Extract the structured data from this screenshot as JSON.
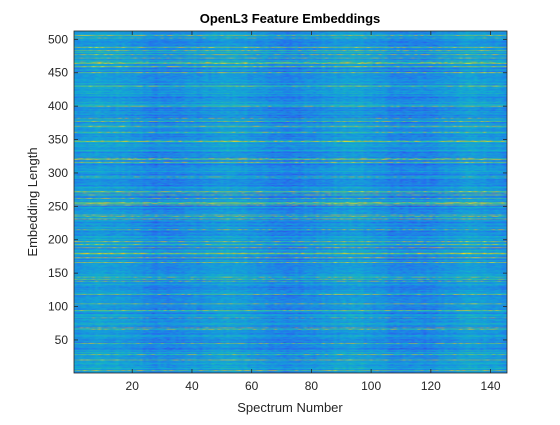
{
  "chart_data": {
    "type": "heatmap",
    "title": "OpenL3 Feature Embeddings",
    "xlabel": "Spectrum Number",
    "ylabel": "Embedding Length",
    "xlim": [
      0.5,
      145.5
    ],
    "ylim": [
      0.5,
      512.5
    ],
    "x_ticks": [
      20,
      40,
      60,
      80,
      100,
      120,
      140
    ],
    "y_ticks": [
      50,
      100,
      150,
      200,
      250,
      300,
      350,
      400,
      450,
      500
    ],
    "num_spectra": 145,
    "embedding_length": 512,
    "colormap": "parula",
    "color_range": [
      0,
      1
    ],
    "colormap_stops": [
      "#3e26a8",
      "#2c5df6",
      "#1a8fe2",
      "#11b1ce",
      "#2cbf9f",
      "#8ebf5a",
      "#d9b931",
      "#f9fb15"
    ],
    "dominant_level": 0.3,
    "grid": false
  }
}
